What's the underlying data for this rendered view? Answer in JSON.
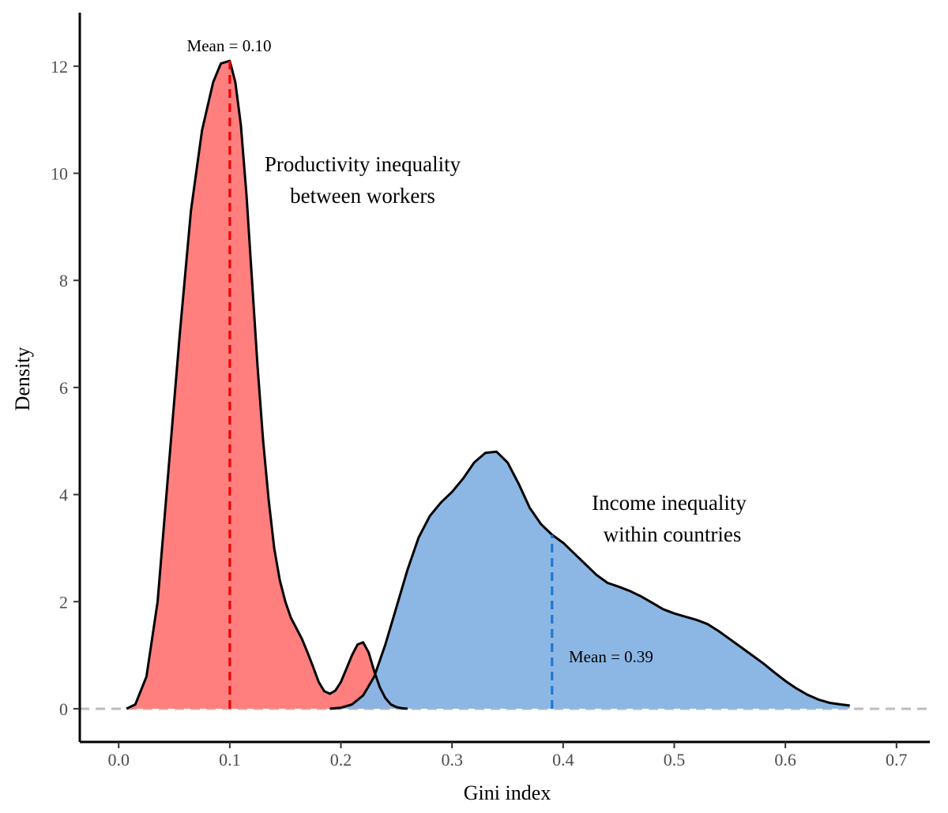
{
  "chart_data": {
    "type": "area",
    "title": "",
    "xlabel": "Gini index",
    "ylabel": "Density",
    "xlim": [
      -0.035,
      0.73
    ],
    "ylim": [
      -0.62,
      13.0
    ],
    "xticks": [
      0.0,
      0.1,
      0.2,
      0.3,
      0.4,
      0.5,
      0.6,
      0.7
    ],
    "xtick_labels": [
      "0.0",
      "0.1",
      "0.2",
      "0.3",
      "0.4",
      "0.5",
      "0.6",
      "0.7"
    ],
    "yticks": [
      0,
      2,
      4,
      6,
      8,
      10,
      12
    ],
    "ytick_labels": [
      "0",
      "2",
      "4",
      "6",
      "8",
      "10",
      "12"
    ],
    "grid": false,
    "series": [
      {
        "name": "Productivity inequality between workers",
        "color": "#ff7f7f",
        "mean": 0.1,
        "mean_color": "#ee0000",
        "mean_label": "Mean =  0.10",
        "label_lines": [
          "Productivity inequality",
          "between workers"
        ],
        "x": [
          0.007,
          0.015,
          0.025,
          0.035,
          0.045,
          0.055,
          0.065,
          0.075,
          0.085,
          0.092,
          0.1,
          0.105,
          0.11,
          0.115,
          0.12,
          0.125,
          0.13,
          0.135,
          0.14,
          0.145,
          0.15,
          0.155,
          0.16,
          0.165,
          0.17,
          0.175,
          0.18,
          0.185,
          0.19,
          0.195,
          0.2,
          0.205,
          0.21,
          0.215,
          0.22,
          0.225,
          0.23,
          0.235,
          0.24,
          0.245,
          0.25,
          0.255,
          0.26
        ],
        "y": [
          0.0,
          0.08,
          0.6,
          2.0,
          4.5,
          7.0,
          9.3,
          10.8,
          11.7,
          12.05,
          12.1,
          11.7,
          10.9,
          9.6,
          8.0,
          6.4,
          5.0,
          3.9,
          3.0,
          2.4,
          2.0,
          1.7,
          1.5,
          1.3,
          1.05,
          0.78,
          0.5,
          0.33,
          0.28,
          0.34,
          0.5,
          0.75,
          1.0,
          1.2,
          1.24,
          1.05,
          0.7,
          0.4,
          0.2,
          0.08,
          0.03,
          0.01,
          0.0
        ]
      },
      {
        "name": "Income inequality within countries",
        "color": "#8ab6e4",
        "mean": 0.39,
        "mean_color": "#1f77d4",
        "mean_label": "Mean =  0.39",
        "label_lines": [
          "Income inequality",
          "within countries"
        ],
        "x": [
          0.19,
          0.2,
          0.21,
          0.22,
          0.23,
          0.24,
          0.25,
          0.26,
          0.27,
          0.28,
          0.29,
          0.3,
          0.31,
          0.32,
          0.33,
          0.34,
          0.35,
          0.36,
          0.37,
          0.38,
          0.39,
          0.4,
          0.41,
          0.42,
          0.43,
          0.44,
          0.45,
          0.46,
          0.47,
          0.48,
          0.49,
          0.5,
          0.51,
          0.52,
          0.53,
          0.54,
          0.55,
          0.56,
          0.57,
          0.58,
          0.59,
          0.6,
          0.61,
          0.62,
          0.63,
          0.64,
          0.65,
          0.658
        ],
        "y": [
          0.0,
          0.02,
          0.08,
          0.25,
          0.6,
          1.2,
          1.9,
          2.6,
          3.2,
          3.6,
          3.85,
          4.05,
          4.3,
          4.6,
          4.78,
          4.8,
          4.6,
          4.2,
          3.75,
          3.45,
          3.25,
          3.1,
          2.9,
          2.7,
          2.5,
          2.35,
          2.28,
          2.2,
          2.1,
          1.98,
          1.86,
          1.78,
          1.72,
          1.66,
          1.58,
          1.45,
          1.3,
          1.15,
          1.0,
          0.85,
          0.68,
          0.52,
          0.38,
          0.26,
          0.17,
          0.11,
          0.08,
          0.06
        ]
      }
    ]
  }
}
